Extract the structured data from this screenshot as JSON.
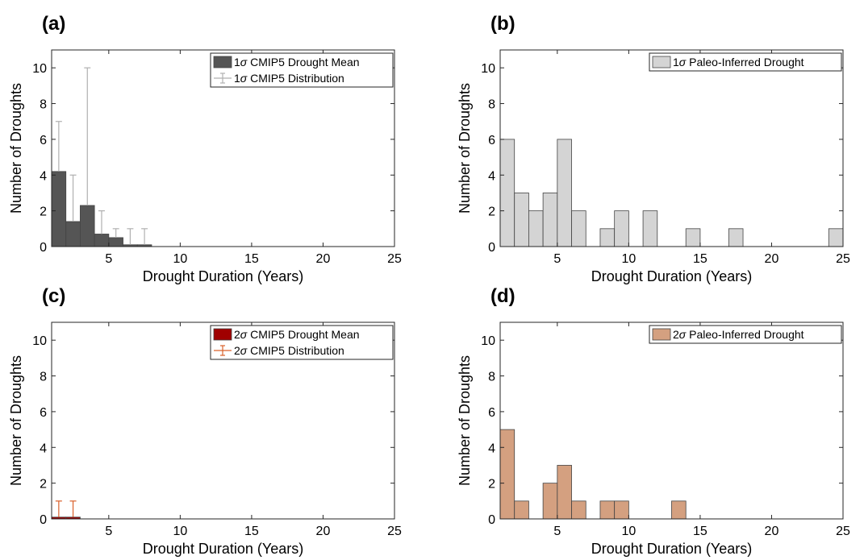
{
  "figure": {
    "panels": [
      "(a)",
      "(b)",
      "(c)",
      "(d)"
    ]
  },
  "chart_data": [
    {
      "panel": "(a)",
      "type": "bar",
      "xlabel": "Drought Duration (Years)",
      "ylabel": "Number of Droughts",
      "xlim": [
        1,
        25
      ],
      "ylim": [
        0,
        11
      ],
      "xticks": [
        5,
        10,
        15,
        20,
        25
      ],
      "yticks": [
        0,
        2,
        4,
        6,
        8,
        10
      ],
      "bar_color": "#555555",
      "errorbar_color": "#b0b0b0",
      "series": [
        {
          "name": "1σ CMIP5 Drought Mean",
          "kind": "bar",
          "x": [
            1.5,
            2.5,
            3.5,
            4.5,
            5.5,
            6.5,
            7.5
          ],
          "values": [
            4.2,
            1.4,
            2.3,
            0.7,
            0.5,
            0.1,
            0.1
          ]
        },
        {
          "name": "1σ CMIP5 Distribution",
          "kind": "errorbar",
          "x": [
            1.5,
            2.5,
            3.5,
            4.5,
            5.5,
            6.5,
            7.5
          ],
          "low": [
            4.2,
            1.4,
            2.3,
            0.7,
            0.5,
            0.1,
            0.1
          ],
          "high": [
            7,
            4,
            10,
            2,
            1,
            1,
            1
          ]
        }
      ],
      "legend": {
        "location": "top-right",
        "entries": [
          {
            "prefix": "1",
            "sigma": "σ",
            "rest": " CMIP5 Drought Mean"
          },
          {
            "prefix": "1",
            "sigma": "σ",
            "rest": " CMIP5 Distribution"
          }
        ]
      }
    },
    {
      "panel": "(b)",
      "type": "bar",
      "xlabel": "Drought Duration (Years)",
      "ylabel": "Number of Droughts",
      "xlim": [
        1,
        25
      ],
      "ylim": [
        0,
        11
      ],
      "xticks": [
        5,
        10,
        15,
        20,
        25
      ],
      "yticks": [
        0,
        2,
        4,
        6,
        8,
        10
      ],
      "bar_color": "#d4d4d4",
      "series": [
        {
          "name": "1σ Paleo-Inferred Drought",
          "kind": "bar",
          "x": [
            1.5,
            2.5,
            3.5,
            4.5,
            5.5,
            6.5,
            8.5,
            9.5,
            11.5,
            14.5,
            17.5,
            24.5
          ],
          "values": [
            6,
            3,
            2,
            3,
            6,
            2,
            1,
            2,
            2,
            1,
            1,
            1
          ]
        }
      ],
      "legend": {
        "location": "top-right",
        "entries": [
          {
            "prefix": "1",
            "sigma": "σ",
            "rest": " Paleo-Inferred Drought"
          }
        ]
      }
    },
    {
      "panel": "(c)",
      "type": "bar",
      "xlabel": "Drought Duration (Years)",
      "ylabel": "Number of Droughts",
      "xlim": [
        1,
        25
      ],
      "ylim": [
        0,
        11
      ],
      "xticks": [
        5,
        10,
        15,
        20,
        25
      ],
      "yticks": [
        0,
        2,
        4,
        6,
        8,
        10
      ],
      "bar_color": "#a00000",
      "errorbar_color": "#d9602a",
      "series": [
        {
          "name": "2σ CMIP5 Drought Mean",
          "kind": "bar",
          "x": [
            1.5,
            2.5
          ],
          "values": [
            0.1,
            0.1
          ]
        },
        {
          "name": "2σ CMIP5 Distribution",
          "kind": "errorbar",
          "x": [
            1.5,
            2.5
          ],
          "low": [
            0.1,
            0.1
          ],
          "high": [
            1,
            1
          ]
        }
      ],
      "legend": {
        "location": "top-right",
        "entries": [
          {
            "prefix": "2",
            "sigma": "σ",
            "rest": " CMIP5 Drought Mean"
          },
          {
            "prefix": "2",
            "sigma": "σ",
            "rest": " CMIP5 Distribution"
          }
        ]
      }
    },
    {
      "panel": "(d)",
      "type": "bar",
      "xlabel": "Drought Duration (Years)",
      "ylabel": "Number of Droughts",
      "xlim": [
        1,
        25
      ],
      "ylim": [
        0,
        11
      ],
      "xticks": [
        5,
        10,
        15,
        20,
        25
      ],
      "yticks": [
        0,
        2,
        4,
        6,
        8,
        10
      ],
      "bar_color": "#d4a080",
      "series": [
        {
          "name": "2σ Paleo-Inferred Drought",
          "kind": "bar",
          "x": [
            1.5,
            2.5,
            4.5,
            5.5,
            6.5,
            8.5,
            9.5,
            13.5
          ],
          "values": [
            5,
            1,
            2,
            3,
            1,
            1,
            1,
            1
          ]
        }
      ],
      "legend": {
        "location": "top-right",
        "entries": [
          {
            "prefix": "2",
            "sigma": "σ",
            "rest": " Paleo-Inferred Drought"
          }
        ]
      }
    }
  ]
}
